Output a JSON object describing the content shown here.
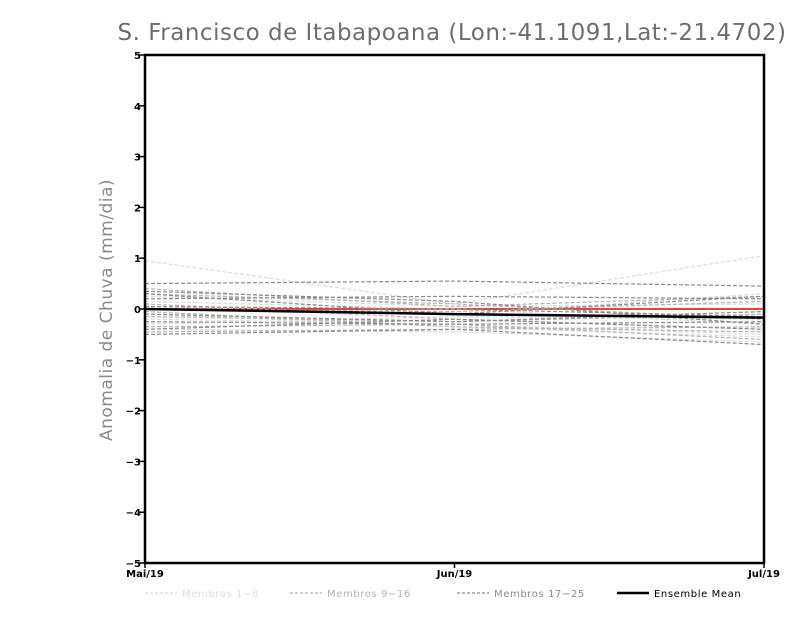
{
  "chart_data": {
    "type": "line",
    "title": "S. Francisco de Itabapoana (Lon:-41.1091,Lat:-21.4702)",
    "xlabel": "",
    "ylabel": "Anomalia de Chuva (mm/dia)",
    "categories": [
      "Mai/19",
      "Jun/19",
      "Jul/19"
    ],
    "ylim": [
      -5,
      5
    ],
    "yticks": [
      "5",
      "4",
      "3",
      "2",
      "1",
      "0",
      "-1",
      "-2",
      "-3",
      "-4",
      "-5"
    ],
    "grid": false,
    "legend_position": "bottom",
    "zero_line_color": "#e60000",
    "legend": [
      {
        "label": "Membros 1-8",
        "color": "#dcdcdc",
        "style": "dashed"
      },
      {
        "label": "Membros 9-16",
        "color": "#b4b4b4",
        "style": "dashed"
      },
      {
        "label": "Membros 17-25",
        "color": "#8c8c8c",
        "style": "dashed"
      },
      {
        "label": "Ensemble Mean",
        "color": "#000000",
        "style": "solid"
      }
    ],
    "series": [
      {
        "group": 1,
        "color": "#dcdcdc",
        "values": [
          0.95,
          0.1,
          1.05
        ]
      },
      {
        "group": 1,
        "color": "#dcdcdc",
        "values": [
          -0.4,
          -0.45,
          -0.65
        ]
      },
      {
        "group": 1,
        "color": "#dcdcdc",
        "values": [
          0.15,
          0.0,
          -0.3
        ]
      },
      {
        "group": 1,
        "color": "#dcdcdc",
        "values": [
          -0.2,
          -0.3,
          -0.5
        ]
      },
      {
        "group": 1,
        "color": "#dcdcdc",
        "values": [
          0.05,
          -0.1,
          0.3
        ]
      },
      {
        "group": 1,
        "color": "#dcdcdc",
        "values": [
          -0.3,
          -0.15,
          -0.2
        ]
      },
      {
        "group": 1,
        "color": "#dcdcdc",
        "values": [
          0.25,
          0.05,
          0.1
        ]
      },
      {
        "group": 1,
        "color": "#dcdcdc",
        "values": [
          -0.1,
          -0.35,
          -0.55
        ]
      },
      {
        "group": 2,
        "color": "#b4b4b4",
        "values": [
          0.4,
          0.05,
          0.25
        ]
      },
      {
        "group": 2,
        "color": "#b4b4b4",
        "values": [
          -0.45,
          -0.4,
          -0.35
        ]
      },
      {
        "group": 2,
        "color": "#b4b4b4",
        "values": [
          0.1,
          -0.2,
          -0.4
        ]
      },
      {
        "group": 2,
        "color": "#b4b4b4",
        "values": [
          -0.15,
          -0.25,
          -0.1
        ]
      },
      {
        "group": 2,
        "color": "#b4b4b4",
        "values": [
          0.3,
          0.1,
          -0.2
        ]
      },
      {
        "group": 2,
        "color": "#b4b4b4",
        "values": [
          -0.35,
          -0.3,
          -0.6
        ]
      },
      {
        "group": 2,
        "color": "#b4b4b4",
        "values": [
          0.0,
          -0.05,
          0.15
        ]
      },
      {
        "group": 2,
        "color": "#b4b4b4",
        "values": [
          -0.05,
          -0.35,
          -0.45
        ]
      },
      {
        "group": 3,
        "color": "#8c8c8c",
        "values": [
          0.5,
          0.55,
          0.45
        ]
      },
      {
        "group": 3,
        "color": "#8c8c8c",
        "values": [
          0.35,
          0.15,
          -0.3
        ]
      },
      {
        "group": 3,
        "color": "#8c8c8c",
        "values": [
          -0.5,
          -0.4,
          -0.7
        ]
      },
      {
        "group": 3,
        "color": "#8c8c8c",
        "values": [
          0.2,
          0.25,
          0.2
        ]
      },
      {
        "group": 3,
        "color": "#8c8c8c",
        "values": [
          -0.25,
          -0.3,
          -0.25
        ]
      },
      {
        "group": 3,
        "color": "#8c8c8c",
        "values": [
          0.3,
          -0.1,
          0.25
        ]
      },
      {
        "group": 3,
        "color": "#8c8c8c",
        "values": [
          -0.4,
          -0.2,
          -0.4
        ]
      },
      {
        "group": 3,
        "color": "#8c8c8c",
        "values": [
          0.05,
          0.0,
          -0.15
        ]
      },
      {
        "group": 3,
        "color": "#8c8c8c",
        "values": [
          -0.1,
          -0.25,
          -0.05
        ]
      }
    ],
    "ensemble_mean": {
      "name": "Ensemble Mean",
      "color": "#000000",
      "values": [
        0.0,
        -0.1,
        -0.17
      ]
    }
  }
}
